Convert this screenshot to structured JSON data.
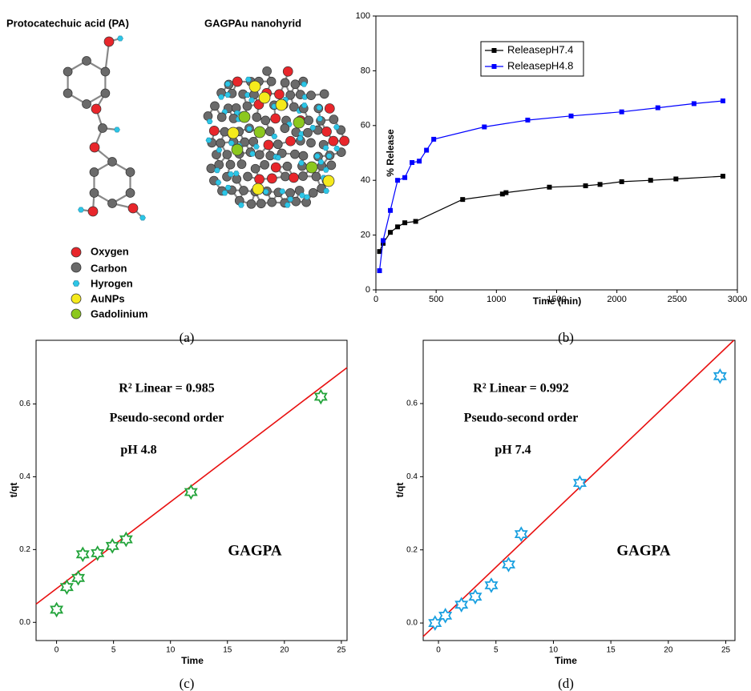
{
  "diagram": {
    "title_left": "Protocatechuic acid (PA)",
    "title_right": "GAGPAu nanohyrid",
    "legend": [
      "Oxygen",
      "Carbon",
      "Hyrogen",
      "AuNPs",
      "Gadolinium"
    ],
    "caption": "(a)"
  },
  "chart_data": [
    {
      "type": "line",
      "caption": "(b)",
      "xlabel": "Time (min)",
      "ylabel": "% Release",
      "xlim": [
        0,
        3000
      ],
      "ylim": [
        0,
        100
      ],
      "xticks": [
        0,
        500,
        1000,
        1500,
        2000,
        2500,
        3000
      ],
      "yticks": [
        0,
        20,
        40,
        60,
        80,
        100
      ],
      "legend": "upper left",
      "series": [
        {
          "name": "ReleasepH7.4",
          "color": "#000000",
          "x": [
            30,
            60,
            120,
            180,
            240,
            330,
            720,
            1050,
            1080,
            1440,
            1740,
            1860,
            2040,
            2280,
            2490,
            2880
          ],
          "values": [
            14,
            17,
            21,
            23,
            24.5,
            25,
            33,
            35,
            35.5,
            37.5,
            38,
            38.5,
            39.5,
            40,
            40.5,
            41.5
          ]
        },
        {
          "name": "ReleasepH4.8",
          "color": "#0000ff",
          "x": [
            30,
            60,
            120,
            180,
            240,
            300,
            360,
            420,
            480,
            900,
            1260,
            1620,
            2040,
            2340,
            2640,
            2880
          ],
          "values": [
            7,
            18,
            29,
            40,
            41,
            46.5,
            47,
            51,
            55,
            59.5,
            62,
            63.5,
            65,
            66.5,
            68,
            69
          ]
        }
      ]
    },
    {
      "type": "scatter",
      "caption": "(c)",
      "xlabel": "Time",
      "ylabel": "t/qt",
      "annotations": [
        "R² Linear = 0.985",
        "Pseudo-second order",
        "pH 4.8",
        "GAGPA"
      ],
      "xlim": [
        -1.8,
        25.5
      ],
      "ylim": [
        -0.05,
        0.775
      ],
      "xticks": [
        0,
        5,
        10,
        15,
        20,
        25
      ],
      "yticks": [
        {
          "value": 0,
          "label": "0.0"
        },
        0.2,
        0.4,
        0.6
      ],
      "color": "#22a33a",
      "x": [
        0,
        0.9,
        1.9,
        2.3,
        3.6,
        4.9,
        6.1,
        11.8,
        23.2
      ],
      "values": [
        0.035,
        0.097,
        0.122,
        0.187,
        0.19,
        0.21,
        0.228,
        0.358,
        0.62
      ],
      "trend_line": {
        "color": "#e81010",
        "x": [
          -1.8,
          25.5
        ],
        "values": [
          0.05,
          0.7
        ]
      }
    },
    {
      "type": "scatter",
      "caption": "(d)",
      "xlabel": "Time",
      "ylabel": "t/qt",
      "annotations": [
        "R² Linear = 0.992",
        "Pseudo-second order",
        "pH 7.4",
        "GAGPA"
      ],
      "xlim": [
        -1.33,
        25.8
      ],
      "ylim": [
        -0.048,
        0.773
      ],
      "xticks": [
        0,
        5,
        10,
        15,
        20,
        25
      ],
      "yticks": [
        {
          "value": 0,
          "label": "0.0"
        },
        0.2,
        0.4,
        0.6
      ],
      "color": "#1aa0e0",
      "x": [
        -0.3,
        0.6,
        2,
        3.2,
        4.6,
        6.1,
        7.2,
        12.3,
        24.5
      ],
      "values": [
        0.0,
        0.02,
        0.05,
        0.072,
        0.103,
        0.16,
        0.243,
        0.383,
        0.675
      ],
      "trend_line": {
        "color": "#e81010",
        "x": [
          -1.33,
          25.7
        ],
        "values": [
          -0.037,
          0.773
        ]
      }
    }
  ]
}
